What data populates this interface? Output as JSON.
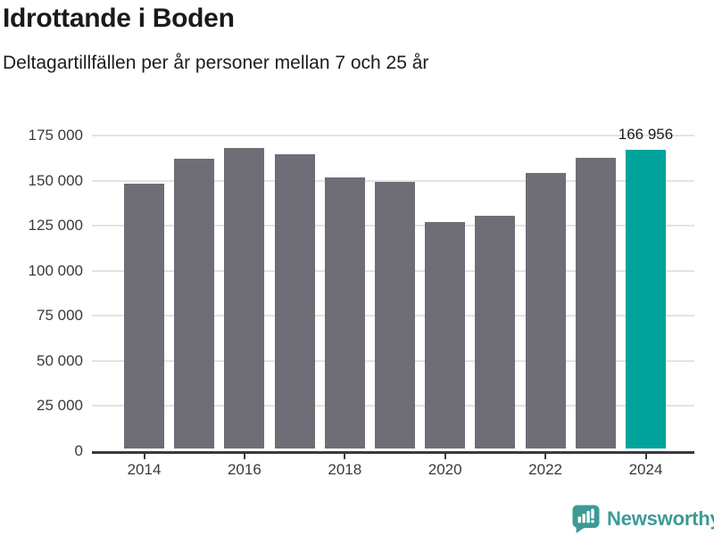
{
  "header": {
    "title": "Idrottande i Boden",
    "subtitle": "Deltagartillfällen per år personer mellan 7 och 25 år"
  },
  "chart_data": {
    "type": "bar",
    "title": "Idrottande i Boden",
    "subtitle": "Deltagartillfällen per år personer mellan 7 och 25 år",
    "categories": [
      "2014",
      "2015",
      "2016",
      "2017",
      "2018",
      "2019",
      "2020",
      "2021",
      "2022",
      "2023",
      "2024"
    ],
    "values": [
      148200,
      162100,
      168000,
      164600,
      151700,
      149200,
      126900,
      130400,
      154200,
      162600,
      166956
    ],
    "highlight_index": 10,
    "highlight_label": "166 956",
    "xlabel": "",
    "ylabel": "",
    "ylim": [
      0,
      175000
    ],
    "ytick_step": 25000,
    "ytick_labels": [
      "0",
      "25 000",
      "50 000",
      "75 000",
      "100 000",
      "125 000",
      "150 000",
      "175 000"
    ],
    "xtick_labels": [
      "2014",
      "2016",
      "2018",
      "2020",
      "2022",
      "2024"
    ],
    "grid": "horizontal",
    "legend": "none",
    "colors": {
      "bar": "#6f6d75",
      "highlight": "#00a39b",
      "gridline": "#e3e3e3",
      "axis": "#3a3a3a",
      "label": "#3a3a3a"
    }
  },
  "footer": {
    "brand": "Newsworthy",
    "brand_color": "#3c9b95"
  }
}
